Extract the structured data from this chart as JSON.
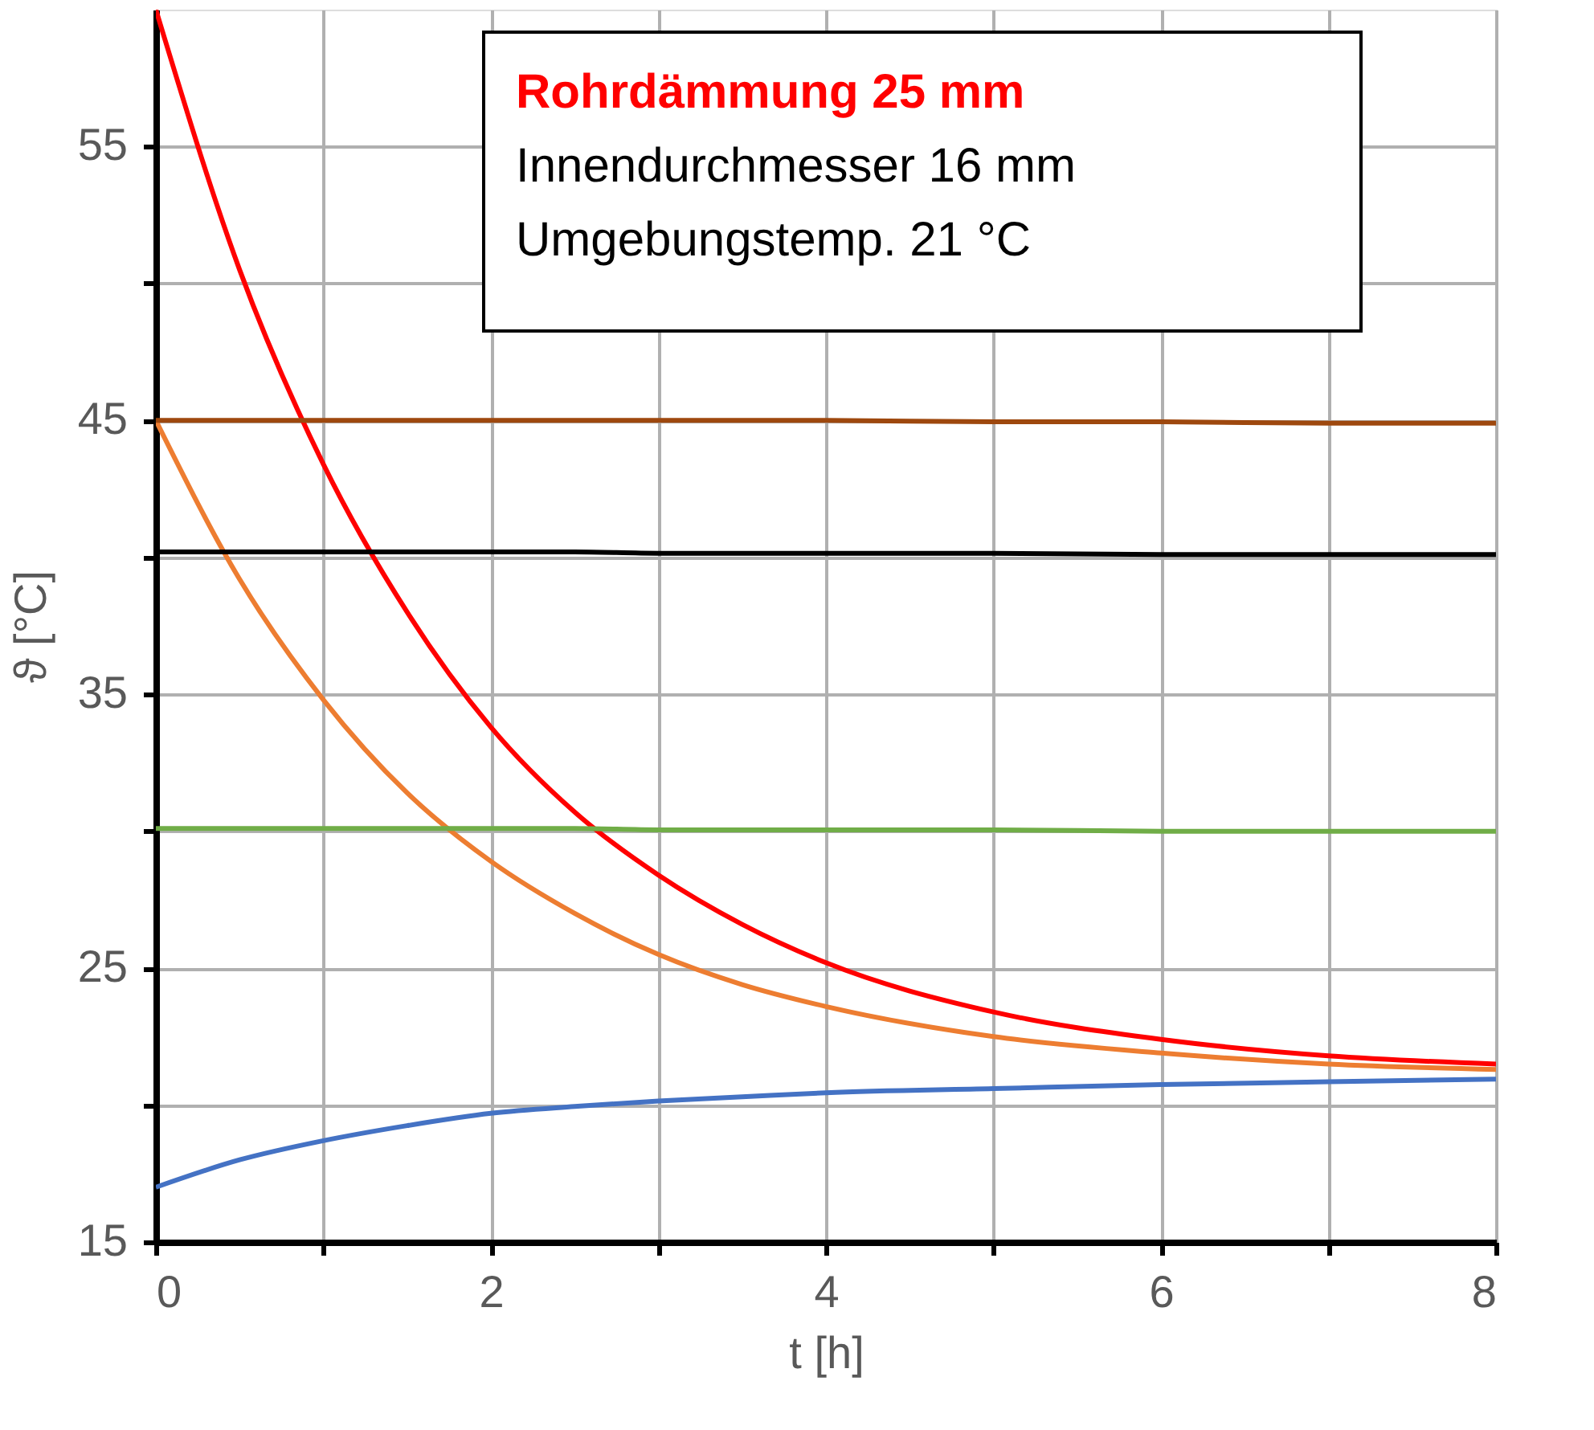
{
  "chart_data": {
    "type": "line",
    "xlabel": "t [h]",
    "ylabel": "ϑ [°C]",
    "annotations": [
      "Rohrdämmung 25 mm",
      "Innendurchmesser 16 mm",
      "Umgebungstemp. 21 °C"
    ],
    "x": [
      0,
      0.5,
      1,
      1.5,
      2,
      2.5,
      3,
      3.5,
      4,
      5,
      6,
      7,
      8
    ],
    "xlim": [
      0,
      8
    ],
    "xticks": [
      0,
      {
        "value": 1,
        "label": null
      },
      2,
      {
        "value": 3,
        "label": null
      },
      4,
      {
        "value": 5,
        "label": null
      },
      6,
      {
        "value": 7,
        "label": null
      },
      8
    ],
    "ylim": [
      15,
      60
    ],
    "yticks": [
      15,
      {
        "value": 20,
        "label": null
      },
      25,
      {
        "value": 30,
        "label": null
      },
      35,
      {
        "value": 40,
        "label": null
      },
      45,
      {
        "value": 50,
        "label": null
      },
      55
    ],
    "grid": true,
    "series": [
      {
        "color": "#ff0000",
        "values": [
          60,
          50.5,
          43.4,
          38.0,
          33.8,
          30.7,
          28.4,
          26.6,
          25.2,
          23.4,
          22.4,
          21.8,
          21.5
        ]
      },
      {
        "color": "#ed7d31",
        "values": [
          45,
          39.2,
          34.8,
          31.4,
          28.9,
          27.0,
          25.5,
          24.4,
          23.6,
          22.5,
          21.9,
          21.5,
          21.3
        ]
      },
      {
        "color": "#9e480e",
        "values": [
          45.0,
          45.0,
          45.0,
          45.0,
          45.0,
          45.0,
          45.0,
          45.0,
          45.0,
          44.95,
          44.95,
          44.9,
          44.9
        ]
      },
      {
        "color": "#000000",
        "values": [
          40.2,
          40.2,
          40.2,
          40.2,
          40.2,
          40.2,
          40.15,
          40.15,
          40.15,
          40.15,
          40.1,
          40.1,
          40.1
        ]
      },
      {
        "color": "#70ad47",
        "values": [
          30.1,
          30.1,
          30.1,
          30.1,
          30.1,
          30.1,
          30.05,
          30.05,
          30.05,
          30.05,
          30.0,
          30.0,
          30.0
        ]
      },
      {
        "color": "#4472c4",
        "values": [
          17.0,
          18.0,
          18.7,
          19.25,
          19.7,
          19.95,
          20.15,
          20.3,
          20.45,
          20.6,
          20.75,
          20.85,
          20.95
        ]
      }
    ]
  }
}
